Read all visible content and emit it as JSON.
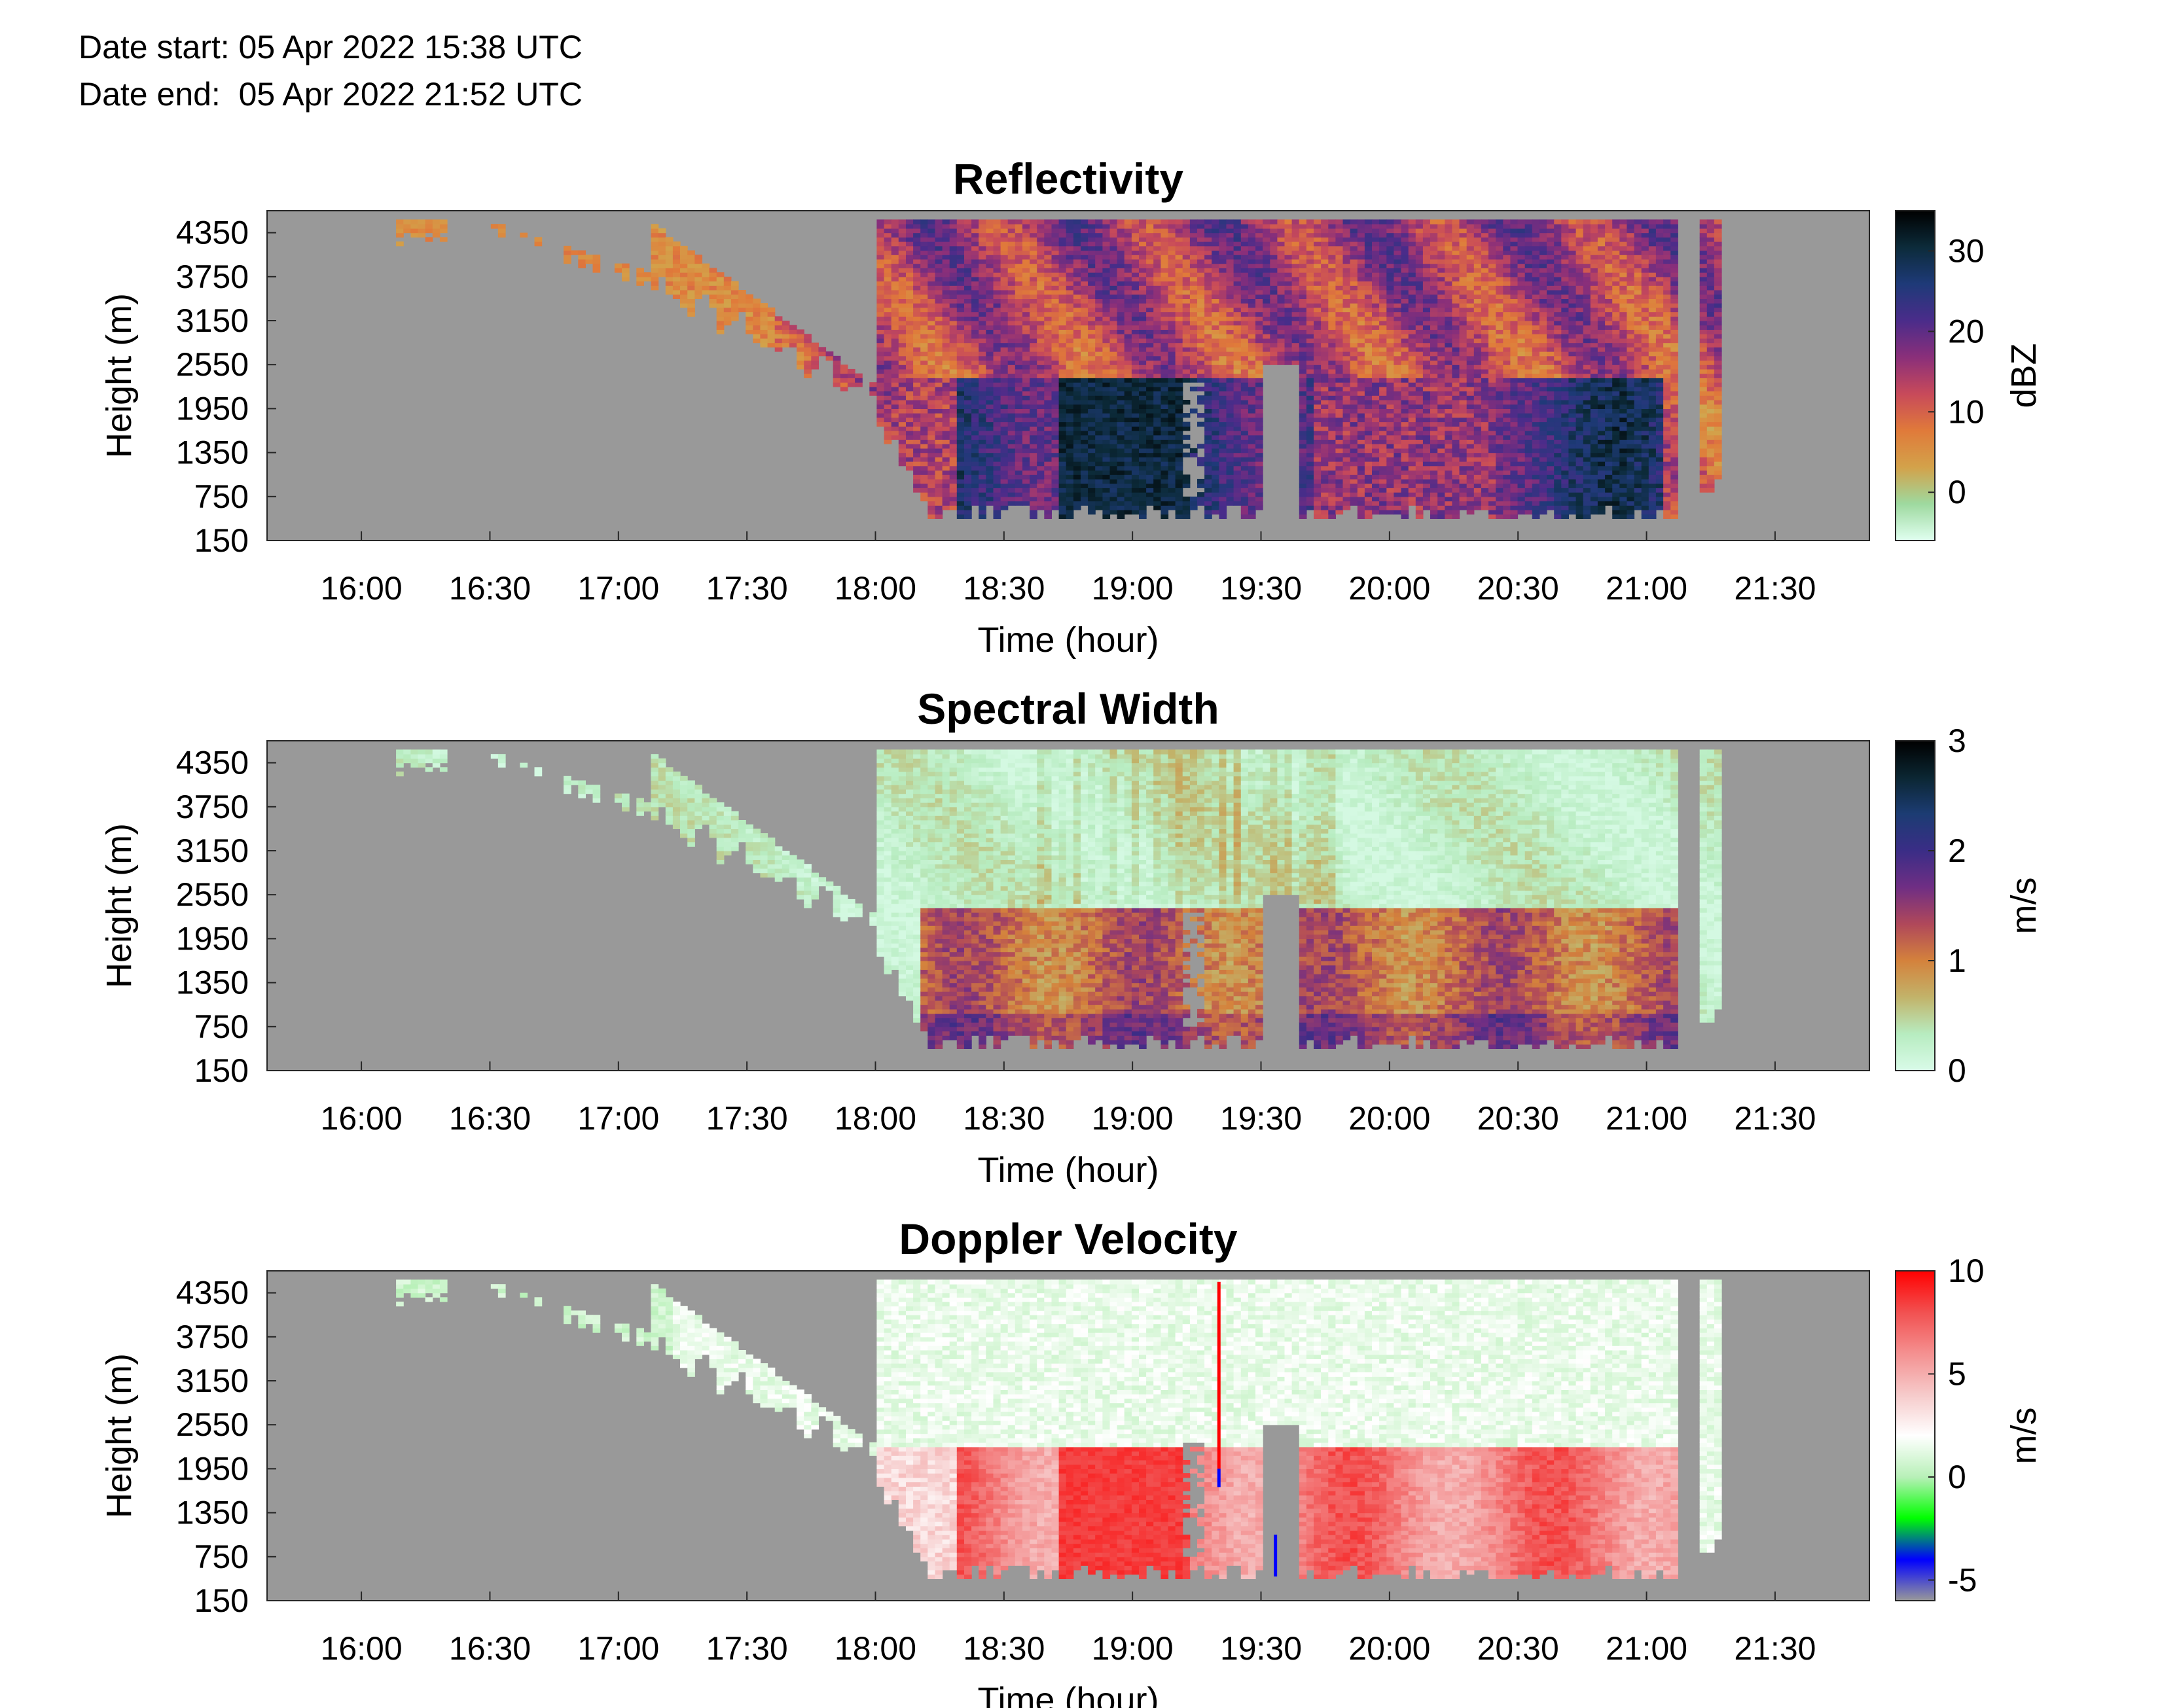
{
  "header": {
    "date_start": "Date start: 05 Apr 2022 15:38 UTC",
    "date_end": "Date end:  05 Apr 2022 21:52 UTC"
  },
  "colors": {
    "no_data": "#999999",
    "axis": "#262626"
  },
  "chart_data": [
    {
      "type": "heatmap",
      "title": "Reflectivity",
      "xlabel": "Time (hour)",
      "ylabel": "Height (m)",
      "x_ticks": [
        "16:00",
        "16:30",
        "17:00",
        "17:30",
        "18:00",
        "18:30",
        "19:00",
        "19:30",
        "20:00",
        "20:30",
        "21:00",
        "21:30"
      ],
      "x_tick_hours": [
        16.0,
        16.5,
        17.0,
        17.5,
        18.0,
        18.5,
        19.0,
        19.5,
        20.0,
        20.5,
        21.0,
        21.5
      ],
      "xlim_hours": [
        15.633,
        21.867
      ],
      "y_ticks": [
        4350,
        3750,
        3150,
        2550,
        1950,
        1350,
        750,
        150
      ],
      "ylim": [
        150,
        4650
      ],
      "colorbar": {
        "label": "dBZ",
        "ticks": [
          30,
          20,
          10,
          0
        ],
        "range": [
          -6,
          35
        ],
        "colormap": [
          "#e0fff0",
          "#9ed99f",
          "#d3a24a",
          "#e07a3a",
          "#c84a5a",
          "#8a2f7a",
          "#4a2c8a",
          "#1e3a78",
          "#0c2b3a",
          "#000000"
        ]
      },
      "field_range": {
        "height_m": [
          450,
          4500
        ],
        "time_hours": [
          16.17,
          21.27
        ]
      }
    },
    {
      "type": "heatmap",
      "title": "Spectral Width",
      "xlabel": "Time (hour)",
      "ylabel": "Height (m)",
      "x_ticks": [
        "16:00",
        "16:30",
        "17:00",
        "17:30",
        "18:00",
        "18:30",
        "19:00",
        "19:30",
        "20:00",
        "20:30",
        "21:00",
        "21:30"
      ],
      "x_tick_hours": [
        16.0,
        16.5,
        17.0,
        17.5,
        18.0,
        18.5,
        19.0,
        19.5,
        20.0,
        20.5,
        21.0,
        21.5
      ],
      "xlim_hours": [
        15.633,
        21.867
      ],
      "y_ticks": [
        4350,
        3750,
        3150,
        2550,
        1950,
        1350,
        750,
        150
      ],
      "ylim": [
        150,
        4650
      ],
      "colorbar": {
        "label": "m/s",
        "ticks": [
          3,
          2,
          1,
          0
        ],
        "range": [
          0,
          3
        ],
        "colormap": [
          "#d9fbe8",
          "#b7ecc0",
          "#c2b36a",
          "#d4823c",
          "#b0485a",
          "#6f2e84",
          "#3a2d86",
          "#1c3c73",
          "#0b2632",
          "#000000"
        ]
      },
      "field_range": {
        "height_m": [
          450,
          4500
        ],
        "time_hours": [
          16.17,
          21.27
        ]
      }
    },
    {
      "type": "heatmap",
      "title": "Doppler Velocity",
      "xlabel": "Time (hour)",
      "ylabel": "Height (m)",
      "x_ticks": [
        "16:00",
        "16:30",
        "17:00",
        "17:30",
        "18:00",
        "18:30",
        "19:00",
        "19:30",
        "20:00",
        "20:30",
        "21:00",
        "21:30"
      ],
      "x_tick_hours": [
        16.0,
        16.5,
        17.0,
        17.5,
        18.0,
        18.5,
        19.0,
        19.5,
        20.0,
        20.5,
        21.0,
        21.5
      ],
      "xlim_hours": [
        15.633,
        21.867
      ],
      "y_ticks": [
        4350,
        3750,
        3150,
        2550,
        1950,
        1350,
        750,
        150
      ],
      "ylim": [
        150,
        4650
      ],
      "colorbar": {
        "label": "m/s",
        "ticks": [
          10,
          5,
          0,
          -5
        ],
        "range": [
          -6,
          10
        ],
        "colormap": [
          "#999999",
          "#0000ff",
          "#00ff00",
          "#b8f0b8",
          "#ffffff",
          "#f6caca",
          "#f49090",
          "#f25050",
          "#ff0000"
        ]
      },
      "field_range": {
        "height_m": [
          450,
          4500
        ],
        "time_hours": [
          16.17,
          21.27
        ]
      }
    }
  ]
}
